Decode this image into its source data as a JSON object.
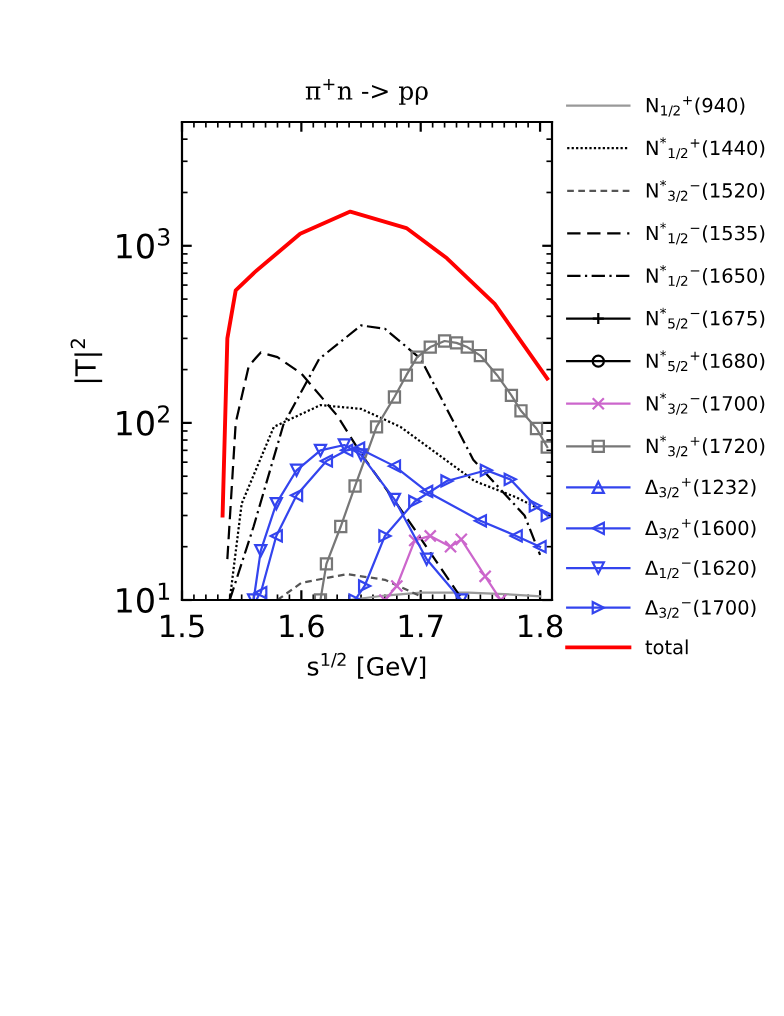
{
  "chart_data": {
    "type": "line",
    "title": "π$^{+}$n -> pρ",
    "xlabel": "s$^{1/2}$ [GeV]",
    "ylabel": "|T|$^{2}$",
    "log": "y",
    "xlim": [
      1.5,
      1.81
    ],
    "xticks": [
      1.5,
      1.6,
      1.7,
      1.8
    ],
    "ylim": [
      10,
      5000
    ],
    "yticks": [
      {
        "value": 10,
        "label": "10$^{1}$"
      },
      {
        "value": 100,
        "label": "10$^{2}$"
      },
      {
        "value": 1000,
        "label": "10$^{3}$"
      }
    ],
    "grid": false,
    "legend": "right",
    "series": [
      {
        "name": "N$_{1/2}$$^{+}$(940)",
        "color": "#999999",
        "line_style": "solid",
        "marker": "none",
        "x": [
          1.64,
          1.67,
          1.7,
          1.74,
          1.77,
          1.8
        ],
        "values": [
          10,
          10.6,
          11,
          11,
          10.8,
          10.5
        ]
      },
      {
        "name": "N$^{*}$$_{1/2}$$^{+}$(1440)",
        "color": "#000000",
        "line_style": "dotted",
        "marker": "none",
        "x": [
          1.54,
          1.55,
          1.577,
          1.616,
          1.65,
          1.683,
          1.745,
          1.78,
          1.81
        ],
        "values": [
          10,
          35,
          95,
          126,
          120,
          95,
          47,
          38,
          30
        ]
      },
      {
        "name": "N$^{*}$$_{3/2}$$^{−}$(1520)",
        "color": "#555555",
        "line_style": "dashed",
        "marker": "none",
        "x": [
          1.58,
          1.6,
          1.638,
          1.67,
          1.7
        ],
        "values": [
          10,
          12.5,
          14,
          13,
          10.5
        ]
      },
      {
        "name": "N$^{*}$$_{1/2}$$^{−}$(1535)",
        "color": "#000000",
        "line_style": "longdash",
        "marker": "none",
        "x": [
          1.538,
          1.545,
          1.556,
          1.566,
          1.58,
          1.6,
          1.63,
          1.65,
          1.69,
          1.735
        ],
        "values": [
          17,
          100,
          210,
          250,
          235,
          190,
          110,
          67,
          28,
          10
        ]
      },
      {
        "name": "N$^{*}$$_{1/2}$$^{−}$(1650)",
        "color": "#000000",
        "line_style": "dashdot",
        "marker": "none",
        "x": [
          1.54,
          1.56,
          1.585,
          1.615,
          1.65,
          1.67,
          1.7,
          1.744,
          1.787,
          1.8
        ],
        "values": [
          10,
          26,
          98,
          230,
          355,
          340,
          230,
          62,
          30,
          18
        ]
      },
      {
        "name": "N$^{*}$$_{5/2}$$^{−}$(1675)",
        "color": "#000000",
        "line_style": "solid",
        "marker": "plus"
      },
      {
        "name": "N$^{*}$$_{5/2}$$^{+}$(1680)",
        "color": "#000000",
        "line_style": "solid",
        "marker": "circle"
      },
      {
        "name": "N$^{*}$$_{3/2}$$^{−}$(1700)",
        "color": "#cc66cc",
        "line_style": "solid",
        "marker": "cross",
        "x": [
          1.67,
          1.68,
          1.695,
          1.708,
          1.725,
          1.734,
          1.754,
          1.767
        ],
        "values": [
          10,
          12,
          21.7,
          23,
          20,
          22,
          13.6,
          10
        ]
      },
      {
        "name": "N$^{*}$$_{3/2}$$^{+}$(1720)",
        "color": "#777777",
        "line_style": "solid",
        "marker": "square",
        "x": [
          1.616,
          1.621,
          1.633,
          1.645,
          1.663,
          1.678,
          1.688,
          1.697,
          1.708,
          1.72,
          1.73,
          1.739,
          1.75,
          1.764,
          1.776,
          1.784,
          1.797,
          1.806
        ],
        "values": [
          10,
          16,
          26,
          44,
          95,
          140,
          186,
          235,
          268,
          290,
          283,
          268,
          240,
          186,
          143,
          117,
          93,
          73
        ]
      },
      {
        "name": "Δ$_{3/2}$$^{+}$(1232)",
        "color": "#3344ee",
        "line_style": "solid",
        "marker": "triangle"
      },
      {
        "name": "Δ$_{3/2}$$^{+}$(1600)",
        "color": "#3344ee",
        "line_style": "solid",
        "marker": "triangle-left",
        "x": [
          1.566,
          1.579,
          1.596,
          1.621,
          1.638,
          1.648,
          1.678,
          1.705,
          1.75,
          1.78,
          1.8
        ],
        "values": [
          11,
          23,
          39,
          61,
          70,
          72,
          57,
          41,
          28,
          23,
          20
        ]
      },
      {
        "name": "Δ$_{1/2}$$^{−}$(1620)",
        "color": "#3344ee",
        "line_style": "solid",
        "marker": "triangle-down",
        "x": [
          1.56,
          1.566,
          1.579,
          1.596,
          1.616,
          1.636,
          1.65,
          1.678,
          1.705,
          1.734
        ],
        "values": [
          10,
          19,
          35,
          54,
          70,
          75,
          66,
          37,
          17,
          10
        ]
      },
      {
        "name": "Δ$_{3/2}$$^{−}$(1700)",
        "color": "#3344ee",
        "line_style": "solid",
        "marker": "triangle-right",
        "x": [
          1.645,
          1.653,
          1.67,
          1.695,
          1.722,
          1.755,
          1.775,
          1.796,
          1.806
        ],
        "values": [
          10,
          12,
          23,
          36,
          47,
          54,
          48,
          34,
          30
        ]
      },
      {
        "name": "total",
        "color": "#ff0000",
        "line_style": "solid",
        "marker": "none",
        "x": [
          1.534,
          1.538,
          1.545,
          1.561,
          1.599,
          1.641,
          1.688,
          1.722,
          1.762,
          1.806
        ],
        "values": [
          30,
          300,
          560,
          710,
          1170,
          1560,
          1260,
          850,
          470,
          178
        ]
      }
    ]
  }
}
